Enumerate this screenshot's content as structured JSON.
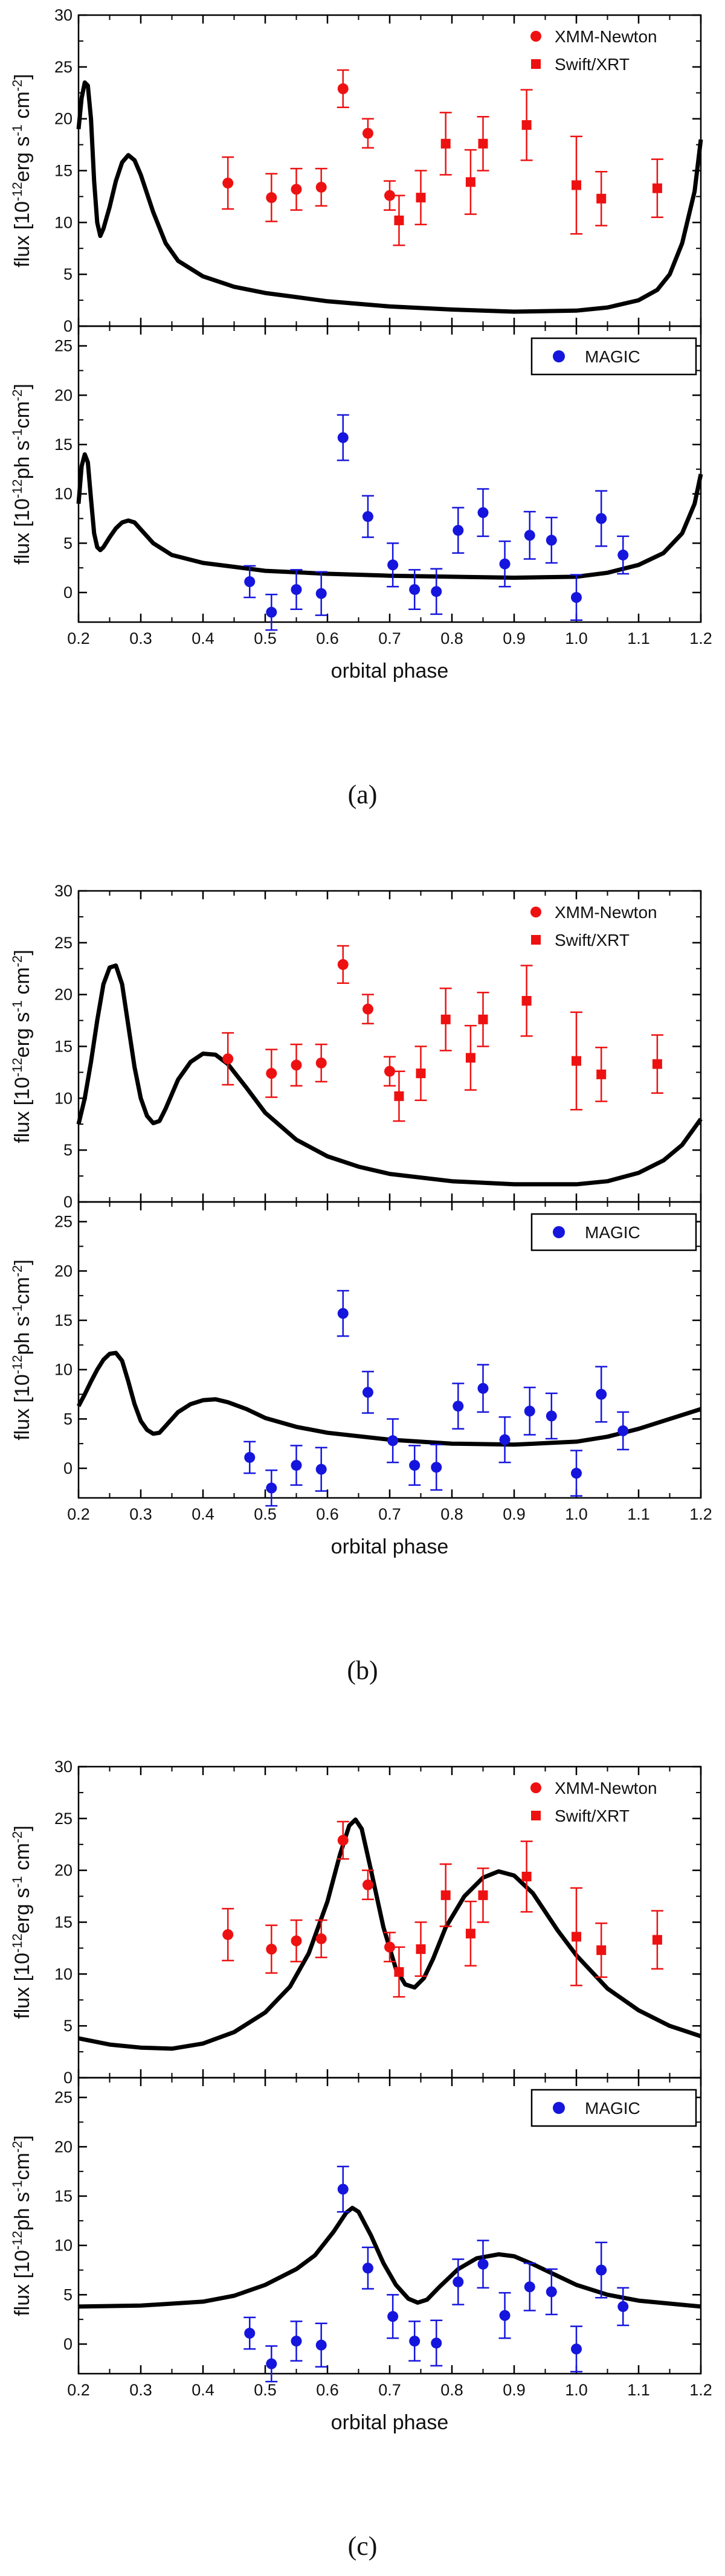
{
  "colors": {
    "xmm": "#ee1111",
    "swift": "#ee1111",
    "magic": "#1515dd",
    "model": "#000000",
    "axis": "#000000"
  },
  "common": {
    "xlabel": "orbital phase",
    "xlim": [
      0.2,
      1.2
    ],
    "x_ticks": [
      0.2,
      0.3,
      0.4,
      0.5,
      0.6,
      0.7,
      0.8,
      0.9,
      1.0,
      1.1,
      1.2
    ],
    "x_tick_labels": [
      "0.2",
      "0.3",
      "0.4",
      "0.5",
      "0.6",
      "0.7",
      "0.8",
      "0.9",
      "1.0",
      "1.1",
      "1.2"
    ],
    "xray": {
      "ylabel_main": "flux [10",
      "ylabel_exp": "-12",
      "ylabel_rest": "erg s",
      "ylabel_exp2": "-1",
      "ylabel_cm": " cm",
      "ylabel_exp3": "-2",
      "ylabel_close": "]",
      "ylim": [
        0,
        30
      ],
      "y_ticks": [
        0,
        5,
        10,
        15,
        20,
        25,
        30
      ],
      "y_tick_labels": [
        "0",
        "5",
        "10",
        "15",
        "20",
        "25",
        "30"
      ],
      "legend": [
        "XMM-Newton",
        "Swift/XRT"
      ],
      "xmm": [
        {
          "x": 0.44,
          "y": 13.8,
          "err": 2.5
        },
        {
          "x": 0.51,
          "y": 12.4,
          "err": 2.3
        },
        {
          "x": 0.55,
          "y": 13.2,
          "err": 2.0
        },
        {
          "x": 0.59,
          "y": 13.4,
          "err": 1.8
        },
        {
          "x": 0.625,
          "y": 22.9,
          "err": 1.8
        },
        {
          "x": 0.665,
          "y": 18.6,
          "err": 1.4
        },
        {
          "x": 0.7,
          "y": 12.6,
          "err": 1.4
        }
      ],
      "swift": [
        {
          "x": 0.715,
          "y": 10.2,
          "err": 2.4
        },
        {
          "x": 0.75,
          "y": 12.4,
          "err": 2.6
        },
        {
          "x": 0.79,
          "y": 17.6,
          "err": 3.0
        },
        {
          "x": 0.83,
          "y": 13.9,
          "err": 3.1
        },
        {
          "x": 0.85,
          "y": 17.6,
          "err": 2.6
        },
        {
          "x": 0.92,
          "y": 19.4,
          "err": 3.4
        },
        {
          "x": 1.0,
          "y": 13.6,
          "err": 4.7
        },
        {
          "x": 1.04,
          "y": 12.3,
          "err": 2.6
        },
        {
          "x": 1.13,
          "y": 13.3,
          "err": 2.8
        }
      ]
    },
    "gamma": {
      "ylabel_main": "flux [10",
      "ylabel_exp": "-12",
      "ylabel_rest": "ph s",
      "ylabel_exp2": "-1",
      "ylabel_cm": "cm",
      "ylabel_exp3": "-2",
      "ylabel_close": "]",
      "ylim": [
        -3,
        27
      ],
      "y_ticks": [
        0,
        5,
        10,
        15,
        20,
        25
      ],
      "y_tick_labels": [
        "0",
        "5",
        "10",
        "15",
        "20",
        "25"
      ],
      "legend": [
        "MAGIC"
      ],
      "magic": [
        {
          "x": 0.475,
          "y": 1.1,
          "err": 1.6
        },
        {
          "x": 0.51,
          "y": -2.0,
          "err": 1.8
        },
        {
          "x": 0.55,
          "y": 0.3,
          "err": 2.0
        },
        {
          "x": 0.59,
          "y": -0.1,
          "err": 2.2
        },
        {
          "x": 0.625,
          "y": 15.7,
          "err": 2.3
        },
        {
          "x": 0.665,
          "y": 7.7,
          "err": 2.1
        },
        {
          "x": 0.705,
          "y": 2.8,
          "err": 2.2
        },
        {
          "x": 0.74,
          "y": 0.3,
          "err": 2.0
        },
        {
          "x": 0.775,
          "y": 0.1,
          "err": 2.3
        },
        {
          "x": 0.81,
          "y": 6.3,
          "err": 2.3
        },
        {
          "x": 0.85,
          "y": 8.1,
          "err": 2.4
        },
        {
          "x": 0.885,
          "y": 2.9,
          "err": 2.3
        },
        {
          "x": 0.925,
          "y": 5.8,
          "err": 2.4
        },
        {
          "x": 0.96,
          "y": 5.3,
          "err": 2.3
        },
        {
          "x": 1.0,
          "y": -0.5,
          "err": 2.3
        },
        {
          "x": 1.04,
          "y": 7.5,
          "err": 2.8
        },
        {
          "x": 1.075,
          "y": 3.8,
          "err": 1.9
        }
      ]
    }
  },
  "chart_data": [
    {
      "type": "scatter",
      "caption": "(a)",
      "model_xray": [
        [
          0.2,
          19.0
        ],
        [
          0.205,
          22.0
        ],
        [
          0.21,
          23.5
        ],
        [
          0.215,
          23.2
        ],
        [
          0.22,
          20.0
        ],
        [
          0.225,
          14.0
        ],
        [
          0.23,
          10.0
        ],
        [
          0.235,
          8.7
        ],
        [
          0.24,
          9.4
        ],
        [
          0.25,
          11.5
        ],
        [
          0.26,
          14.0
        ],
        [
          0.27,
          15.8
        ],
        [
          0.28,
          16.5
        ],
        [
          0.29,
          16.0
        ],
        [
          0.3,
          14.6
        ],
        [
          0.32,
          11.0
        ],
        [
          0.34,
          8.0
        ],
        [
          0.36,
          6.3
        ],
        [
          0.4,
          4.8
        ],
        [
          0.45,
          3.8
        ],
        [
          0.5,
          3.2
        ],
        [
          0.55,
          2.8
        ],
        [
          0.6,
          2.4
        ],
        [
          0.7,
          1.9
        ],
        [
          0.8,
          1.6
        ],
        [
          0.9,
          1.4
        ],
        [
          1.0,
          1.5
        ],
        [
          1.05,
          1.8
        ],
        [
          1.1,
          2.5
        ],
        [
          1.13,
          3.5
        ],
        [
          1.15,
          5.0
        ],
        [
          1.17,
          8.0
        ],
        [
          1.19,
          13.0
        ],
        [
          1.2,
          18.0
        ]
      ],
      "model_gamma": [
        [
          0.2,
          9.0
        ],
        [
          0.205,
          12.8
        ],
        [
          0.21,
          14.0
        ],
        [
          0.215,
          13.2
        ],
        [
          0.22,
          9.5
        ],
        [
          0.225,
          6.0
        ],
        [
          0.23,
          4.6
        ],
        [
          0.235,
          4.3
        ],
        [
          0.24,
          4.6
        ],
        [
          0.25,
          5.6
        ],
        [
          0.26,
          6.5
        ],
        [
          0.27,
          7.1
        ],
        [
          0.28,
          7.3
        ],
        [
          0.29,
          7.1
        ],
        [
          0.3,
          6.4
        ],
        [
          0.32,
          5.0
        ],
        [
          0.35,
          3.8
        ],
        [
          0.4,
          3.0
        ],
        [
          0.45,
          2.6
        ],
        [
          0.5,
          2.2
        ],
        [
          0.6,
          1.9
        ],
        [
          0.7,
          1.7
        ],
        [
          0.8,
          1.6
        ],
        [
          0.9,
          1.5
        ],
        [
          1.0,
          1.6
        ],
        [
          1.05,
          2.0
        ],
        [
          1.1,
          2.8
        ],
        [
          1.14,
          4.0
        ],
        [
          1.17,
          6.0
        ],
        [
          1.19,
          9.0
        ],
        [
          1.2,
          12.0
        ]
      ]
    },
    {
      "type": "scatter",
      "caption": "(b)",
      "model_xray": [
        [
          0.2,
          7.5
        ],
        [
          0.21,
          10.0
        ],
        [
          0.22,
          13.5
        ],
        [
          0.23,
          17.5
        ],
        [
          0.24,
          21.0
        ],
        [
          0.25,
          22.6
        ],
        [
          0.26,
          22.8
        ],
        [
          0.27,
          21.0
        ],
        [
          0.28,
          17.0
        ],
        [
          0.29,
          13.0
        ],
        [
          0.3,
          10.0
        ],
        [
          0.31,
          8.3
        ],
        [
          0.32,
          7.6
        ],
        [
          0.33,
          7.8
        ],
        [
          0.34,
          9.0
        ],
        [
          0.36,
          11.8
        ],
        [
          0.38,
          13.5
        ],
        [
          0.4,
          14.3
        ],
        [
          0.42,
          14.2
        ],
        [
          0.44,
          13.3
        ],
        [
          0.47,
          11.0
        ],
        [
          0.5,
          8.6
        ],
        [
          0.55,
          6.0
        ],
        [
          0.6,
          4.4
        ],
        [
          0.65,
          3.4
        ],
        [
          0.7,
          2.7
        ],
        [
          0.8,
          2.0
        ],
        [
          0.9,
          1.7
        ],
        [
          1.0,
          1.7
        ],
        [
          1.05,
          2.0
        ],
        [
          1.1,
          2.8
        ],
        [
          1.14,
          4.0
        ],
        [
          1.17,
          5.5
        ],
        [
          1.2,
          8.0
        ]
      ],
      "model_gamma": [
        [
          0.2,
          6.3
        ],
        [
          0.21,
          7.5
        ],
        [
          0.22,
          8.8
        ],
        [
          0.23,
          10.0
        ],
        [
          0.24,
          11.0
        ],
        [
          0.25,
          11.6
        ],
        [
          0.26,
          11.7
        ],
        [
          0.27,
          10.9
        ],
        [
          0.28,
          8.8
        ],
        [
          0.29,
          6.5
        ],
        [
          0.3,
          4.8
        ],
        [
          0.31,
          3.9
        ],
        [
          0.32,
          3.5
        ],
        [
          0.33,
          3.6
        ],
        [
          0.34,
          4.3
        ],
        [
          0.36,
          5.7
        ],
        [
          0.38,
          6.5
        ],
        [
          0.4,
          6.9
        ],
        [
          0.42,
          7.0
        ],
        [
          0.44,
          6.7
        ],
        [
          0.47,
          6.0
        ],
        [
          0.5,
          5.1
        ],
        [
          0.55,
          4.2
        ],
        [
          0.6,
          3.6
        ],
        [
          0.7,
          2.9
        ],
        [
          0.8,
          2.5
        ],
        [
          0.9,
          2.4
        ],
        [
          1.0,
          2.7
        ],
        [
          1.05,
          3.2
        ],
        [
          1.1,
          4.0
        ],
        [
          1.15,
          5.0
        ],
        [
          1.2,
          6.0
        ]
      ]
    },
    {
      "type": "scatter",
      "caption": "(c)",
      "model_xray": [
        [
          0.2,
          3.8
        ],
        [
          0.25,
          3.2
        ],
        [
          0.3,
          2.9
        ],
        [
          0.35,
          2.8
        ],
        [
          0.4,
          3.3
        ],
        [
          0.45,
          4.4
        ],
        [
          0.5,
          6.3
        ],
        [
          0.54,
          8.8
        ],
        [
          0.57,
          12.0
        ],
        [
          0.6,
          17.0
        ],
        [
          0.62,
          21.5
        ],
        [
          0.635,
          24.3
        ],
        [
          0.645,
          24.9
        ],
        [
          0.655,
          24.0
        ],
        [
          0.67,
          20.0
        ],
        [
          0.69,
          14.5
        ],
        [
          0.71,
          10.5
        ],
        [
          0.725,
          9.0
        ],
        [
          0.74,
          8.7
        ],
        [
          0.755,
          9.6
        ],
        [
          0.77,
          11.5
        ],
        [
          0.79,
          14.5
        ],
        [
          0.82,
          17.5
        ],
        [
          0.85,
          19.3
        ],
        [
          0.875,
          19.9
        ],
        [
          0.9,
          19.5
        ],
        [
          0.93,
          17.8
        ],
        [
          0.97,
          14.2
        ],
        [
          1.0,
          11.8
        ],
        [
          1.05,
          8.6
        ],
        [
          1.1,
          6.5
        ],
        [
          1.15,
          5.0
        ],
        [
          1.2,
          4.0
        ]
      ],
      "model_gamma": [
        [
          0.2,
          3.8
        ],
        [
          0.3,
          3.9
        ],
        [
          0.4,
          4.3
        ],
        [
          0.45,
          4.9
        ],
        [
          0.5,
          6.0
        ],
        [
          0.55,
          7.6
        ],
        [
          0.58,
          9.0
        ],
        [
          0.61,
          11.4
        ],
        [
          0.63,
          13.3
        ],
        [
          0.64,
          13.8
        ],
        [
          0.65,
          13.4
        ],
        [
          0.67,
          11.0
        ],
        [
          0.69,
          8.2
        ],
        [
          0.71,
          6.0
        ],
        [
          0.73,
          4.6
        ],
        [
          0.745,
          4.2
        ],
        [
          0.76,
          4.5
        ],
        [
          0.78,
          5.8
        ],
        [
          0.81,
          7.6
        ],
        [
          0.84,
          8.7
        ],
        [
          0.875,
          9.1
        ],
        [
          0.9,
          8.9
        ],
        [
          0.93,
          8.1
        ],
        [
          0.97,
          6.9
        ],
        [
          1.0,
          6.0
        ],
        [
          1.05,
          5.0
        ],
        [
          1.1,
          4.4
        ],
        [
          1.15,
          4.1
        ],
        [
          1.2,
          3.8
        ]
      ]
    }
  ]
}
